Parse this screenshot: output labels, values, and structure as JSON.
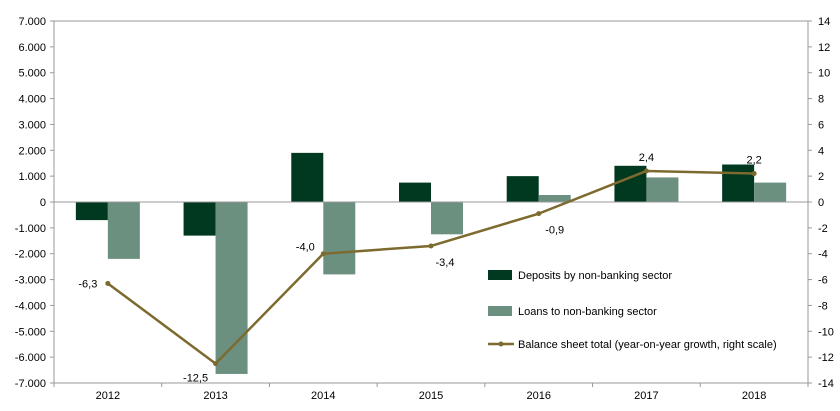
{
  "chart_data": {
    "type": "bar",
    "categories": [
      "2012",
      "2013",
      "2014",
      "2015",
      "2016",
      "2017",
      "2018"
    ],
    "series": [
      {
        "name": "Deposits by non-banking sector",
        "type": "bar",
        "axis": "left",
        "color": "#003820",
        "values": [
          -700,
          -1300,
          1900,
          750,
          1000,
          1400,
          1450
        ]
      },
      {
        "name": "Loans to non-banking sector",
        "type": "bar",
        "axis": "left",
        "color": "#6b9080",
        "values": [
          -2200,
          -6650,
          -2800,
          -1250,
          270,
          950,
          750
        ]
      },
      {
        "name": "Balance sheet total (year-on-year growth, right scale)",
        "type": "line",
        "axis": "right",
        "color": "#7d6a2e",
        "values": [
          -6.3,
          -12.5,
          -4.0,
          -3.4,
          -0.9,
          2.4,
          2.2
        ],
        "labels": [
          "-6,3",
          "-12,5",
          "-4,0",
          "-3,4",
          "-0,9",
          "2,4",
          "2,2"
        ]
      }
    ],
    "y_left": {
      "ylim": [
        -7000,
        7000
      ],
      "ticks": [
        7000,
        6000,
        5000,
        4000,
        3000,
        2000,
        1000,
        0,
        -1000,
        -2000,
        -3000,
        -4000,
        -5000,
        -6000,
        -7000
      ],
      "tick_labels": [
        "7.000",
        "6.000",
        "5.000",
        "4.000",
        "3.000",
        "2.000",
        "1.000",
        "0",
        "-1.000",
        "-2.000",
        "-3.000",
        "-4.000",
        "-5.000",
        "-6.000",
        "-7.000"
      ]
    },
    "y_right": {
      "ylim": [
        -14,
        14
      ],
      "ticks": [
        14,
        12,
        10,
        8,
        6,
        4,
        2,
        0,
        -2,
        -4,
        -6,
        -8,
        -10,
        -12,
        -14
      ],
      "tick_labels": [
        "14",
        "12",
        "10",
        "8",
        "6",
        "4",
        "2",
        "0",
        "-2",
        "-4",
        "-6",
        "-8",
        "-10",
        "-12",
        "-14"
      ]
    },
    "grid": false,
    "legend": "inside-right"
  }
}
